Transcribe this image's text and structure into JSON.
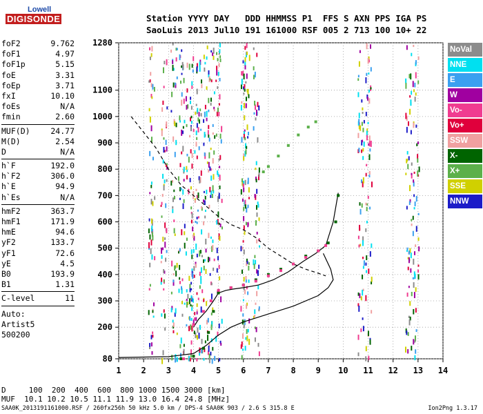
{
  "logo": {
    "top": "Lowell",
    "bottom": "DIGISONDE"
  },
  "header": {
    "line1": "Station YYYY DAY   DDD HHMMSS P1  FFS S AXN PPS IGA PS",
    "line2": "SaoLuis 2013 Jul10 191 161000 RSF 005 2 713 100 10+ 22"
  },
  "params": {
    "group1": [
      {
        "name": "foF2",
        "value": "9.762"
      },
      {
        "name": "foF1",
        "value": "4.97"
      },
      {
        "name": "foF1p",
        "value": "5.15"
      },
      {
        "name": "foE",
        "value": "3.31"
      },
      {
        "name": "foEp",
        "value": "3.71"
      },
      {
        "name": "fxI",
        "value": "10.10"
      },
      {
        "name": "foEs",
        "value": "N/A"
      },
      {
        "name": "fmin",
        "value": "2.60"
      }
    ],
    "group2": [
      {
        "name": "MUF(D)",
        "value": "24.77"
      },
      {
        "name": "M(D)",
        "value": "2.54"
      },
      {
        "name": "D",
        "value": "N/A"
      }
    ],
    "group3": [
      {
        "name": "h`F",
        "value": "192.0"
      },
      {
        "name": "h`F2",
        "value": "306.0"
      },
      {
        "name": "h`E",
        "value": "94.9"
      },
      {
        "name": "h`Es",
        "value": "N/A"
      }
    ],
    "group4": [
      {
        "name": "hmF2",
        "value": "363.7"
      },
      {
        "name": "hmF1",
        "value": "171.9"
      },
      {
        "name": "hmE",
        "value": "94.6"
      },
      {
        "name": "yF2",
        "value": "133.7"
      },
      {
        "name": "yF1",
        "value": "72.6"
      },
      {
        "name": "yE",
        "value": "4.5"
      },
      {
        "name": "B0",
        "value": "193.9"
      },
      {
        "name": "B1",
        "value": "1.31"
      }
    ],
    "clevel": {
      "name": "C-level",
      "value": "11"
    },
    "auto": {
      "line1": "Auto:",
      "line2": "Artist5",
      "line3": "500200"
    }
  },
  "legend": [
    {
      "label": "NoVal",
      "color": "#8c8c8c"
    },
    {
      "label": "NNE",
      "color": "#00e0f0"
    },
    {
      "label": "E",
      "color": "#3aa0f0"
    },
    {
      "label": "W",
      "color": "#a000a0"
    },
    {
      "label": "Vo-",
      "color": "#f03c90"
    },
    {
      "label": "Vo+",
      "color": "#e0003c"
    },
    {
      "label": "SSW",
      "color": "#f0a0a0"
    },
    {
      "label": "X-",
      "color": "#006400"
    },
    {
      "label": "X+",
      "color": "#5cb04a"
    },
    {
      "label": "SSE",
      "color": "#d0d000"
    },
    {
      "label": "NNW",
      "color": "#1c1cc8"
    }
  ],
  "footer": {
    "line1": "D     100  200  400  600  800 1000 1500 3000 [km]",
    "line2": "MUF  10.1 10.2 10.5 11.1 11.9 13.0 16.4 24.8 [MHz]",
    "file": "SAA0K_2013191161000.RSF / 260fx256h 50 kHz 5.0 km / DPS-4 SAA0K 903 / 2.6 S 315.8 E",
    "version": "Ion2Png 1.3.17"
  },
  "chart_data": {
    "type": "scatter",
    "xlim": [
      1,
      14
    ],
    "ylim": [
      80,
      1280
    ],
    "xticks": [
      "1",
      "2",
      "3",
      "4",
      "5",
      "6",
      "7",
      "8",
      "9",
      "10",
      "11",
      "12",
      "13",
      "14"
    ],
    "yticks": [
      "80",
      "200",
      "300",
      "400",
      "500",
      "600",
      "700",
      "800",
      "900",
      "1000",
      "1100",
      "1280"
    ],
    "grid": "dotted",
    "series": [
      {
        "name": "X-",
        "color": "#006400",
        "points": [
          [
            3.5,
            80
          ],
          [
            4.0,
            90
          ],
          [
            4.4,
            120
          ],
          [
            4.6,
            180
          ],
          [
            4.8,
            260
          ],
          [
            5.0,
            330
          ],
          [
            5.5,
            350
          ],
          [
            6.0,
            360
          ],
          [
            6.5,
            380
          ],
          [
            7.0,
            400
          ],
          [
            7.5,
            420
          ],
          [
            8.0,
            440
          ],
          [
            8.5,
            470
          ],
          [
            9.0,
            490
          ],
          [
            9.4,
            520
          ],
          [
            9.7,
            600
          ],
          [
            9.8,
            700
          ]
        ]
      },
      {
        "name": "Vo-",
        "color": "#f03c90",
        "points": [
          [
            3.6,
            80
          ],
          [
            4.0,
            210
          ],
          [
            4.4,
            260
          ],
          [
            4.7,
            300
          ],
          [
            5.0,
            340
          ],
          [
            5.5,
            350
          ],
          [
            6.0,
            360
          ],
          [
            6.5,
            375
          ],
          [
            7.0,
            395
          ],
          [
            7.5,
            415
          ],
          [
            8.0,
            440
          ],
          [
            8.5,
            465
          ],
          [
            9.0,
            490
          ],
          [
            9.3,
            510
          ]
        ]
      },
      {
        "name": "X+",
        "color": "#5cb04a",
        "points": [
          [
            6.8,
            790
          ],
          [
            7.0,
            810
          ],
          [
            7.4,
            850
          ],
          [
            7.8,
            890
          ],
          [
            8.2,
            930
          ],
          [
            8.6,
            960
          ],
          [
            8.9,
            980
          ]
        ]
      }
    ],
    "curves": [
      {
        "style": "dashed",
        "points": [
          [
            1.5,
            1000
          ],
          [
            2.0,
            940
          ],
          [
            2.5,
            880
          ],
          [
            3.0,
            800
          ],
          [
            3.5,
            740
          ],
          [
            4.0,
            700
          ],
          [
            4.5,
            660
          ],
          [
            5.0,
            620
          ],
          [
            5.5,
            590
          ],
          [
            6.0,
            570
          ],
          [
            6.5,
            540
          ],
          [
            7.0,
            500
          ],
          [
            7.5,
            470
          ],
          [
            8.0,
            440
          ],
          [
            8.5,
            420
          ],
          [
            9.0,
            405
          ],
          [
            9.3,
            395
          ]
        ]
      },
      {
        "style": "solid",
        "color": "#000000",
        "points": [
          [
            1.0,
            85
          ],
          [
            3.0,
            88
          ],
          [
            4.0,
            100
          ],
          [
            4.5,
            130
          ],
          [
            5.0,
            170
          ],
          [
            5.5,
            200
          ],
          [
            6.0,
            220
          ],
          [
            7.0,
            250
          ],
          [
            8.0,
            280
          ],
          [
            9.0,
            320
          ],
          [
            9.4,
            350
          ],
          [
            9.6,
            380
          ],
          [
            9.5,
            420
          ],
          [
            9.2,
            480
          ]
        ]
      },
      {
        "style": "solid",
        "color": "#000000",
        "points": [
          [
            4.0,
            200
          ],
          [
            4.2,
            230
          ],
          [
            4.5,
            260
          ],
          [
            4.8,
            300
          ],
          [
            5.0,
            330
          ],
          [
            5.3,
            340
          ],
          [
            5.6,
            345
          ],
          [
            6.0,
            350
          ],
          [
            6.6,
            360
          ],
          [
            7.2,
            380
          ],
          [
            7.8,
            410
          ],
          [
            8.4,
            450
          ],
          [
            8.9,
            480
          ],
          [
            9.3,
            510
          ],
          [
            9.6,
            600
          ],
          [
            9.8,
            710
          ]
        ]
      }
    ]
  }
}
